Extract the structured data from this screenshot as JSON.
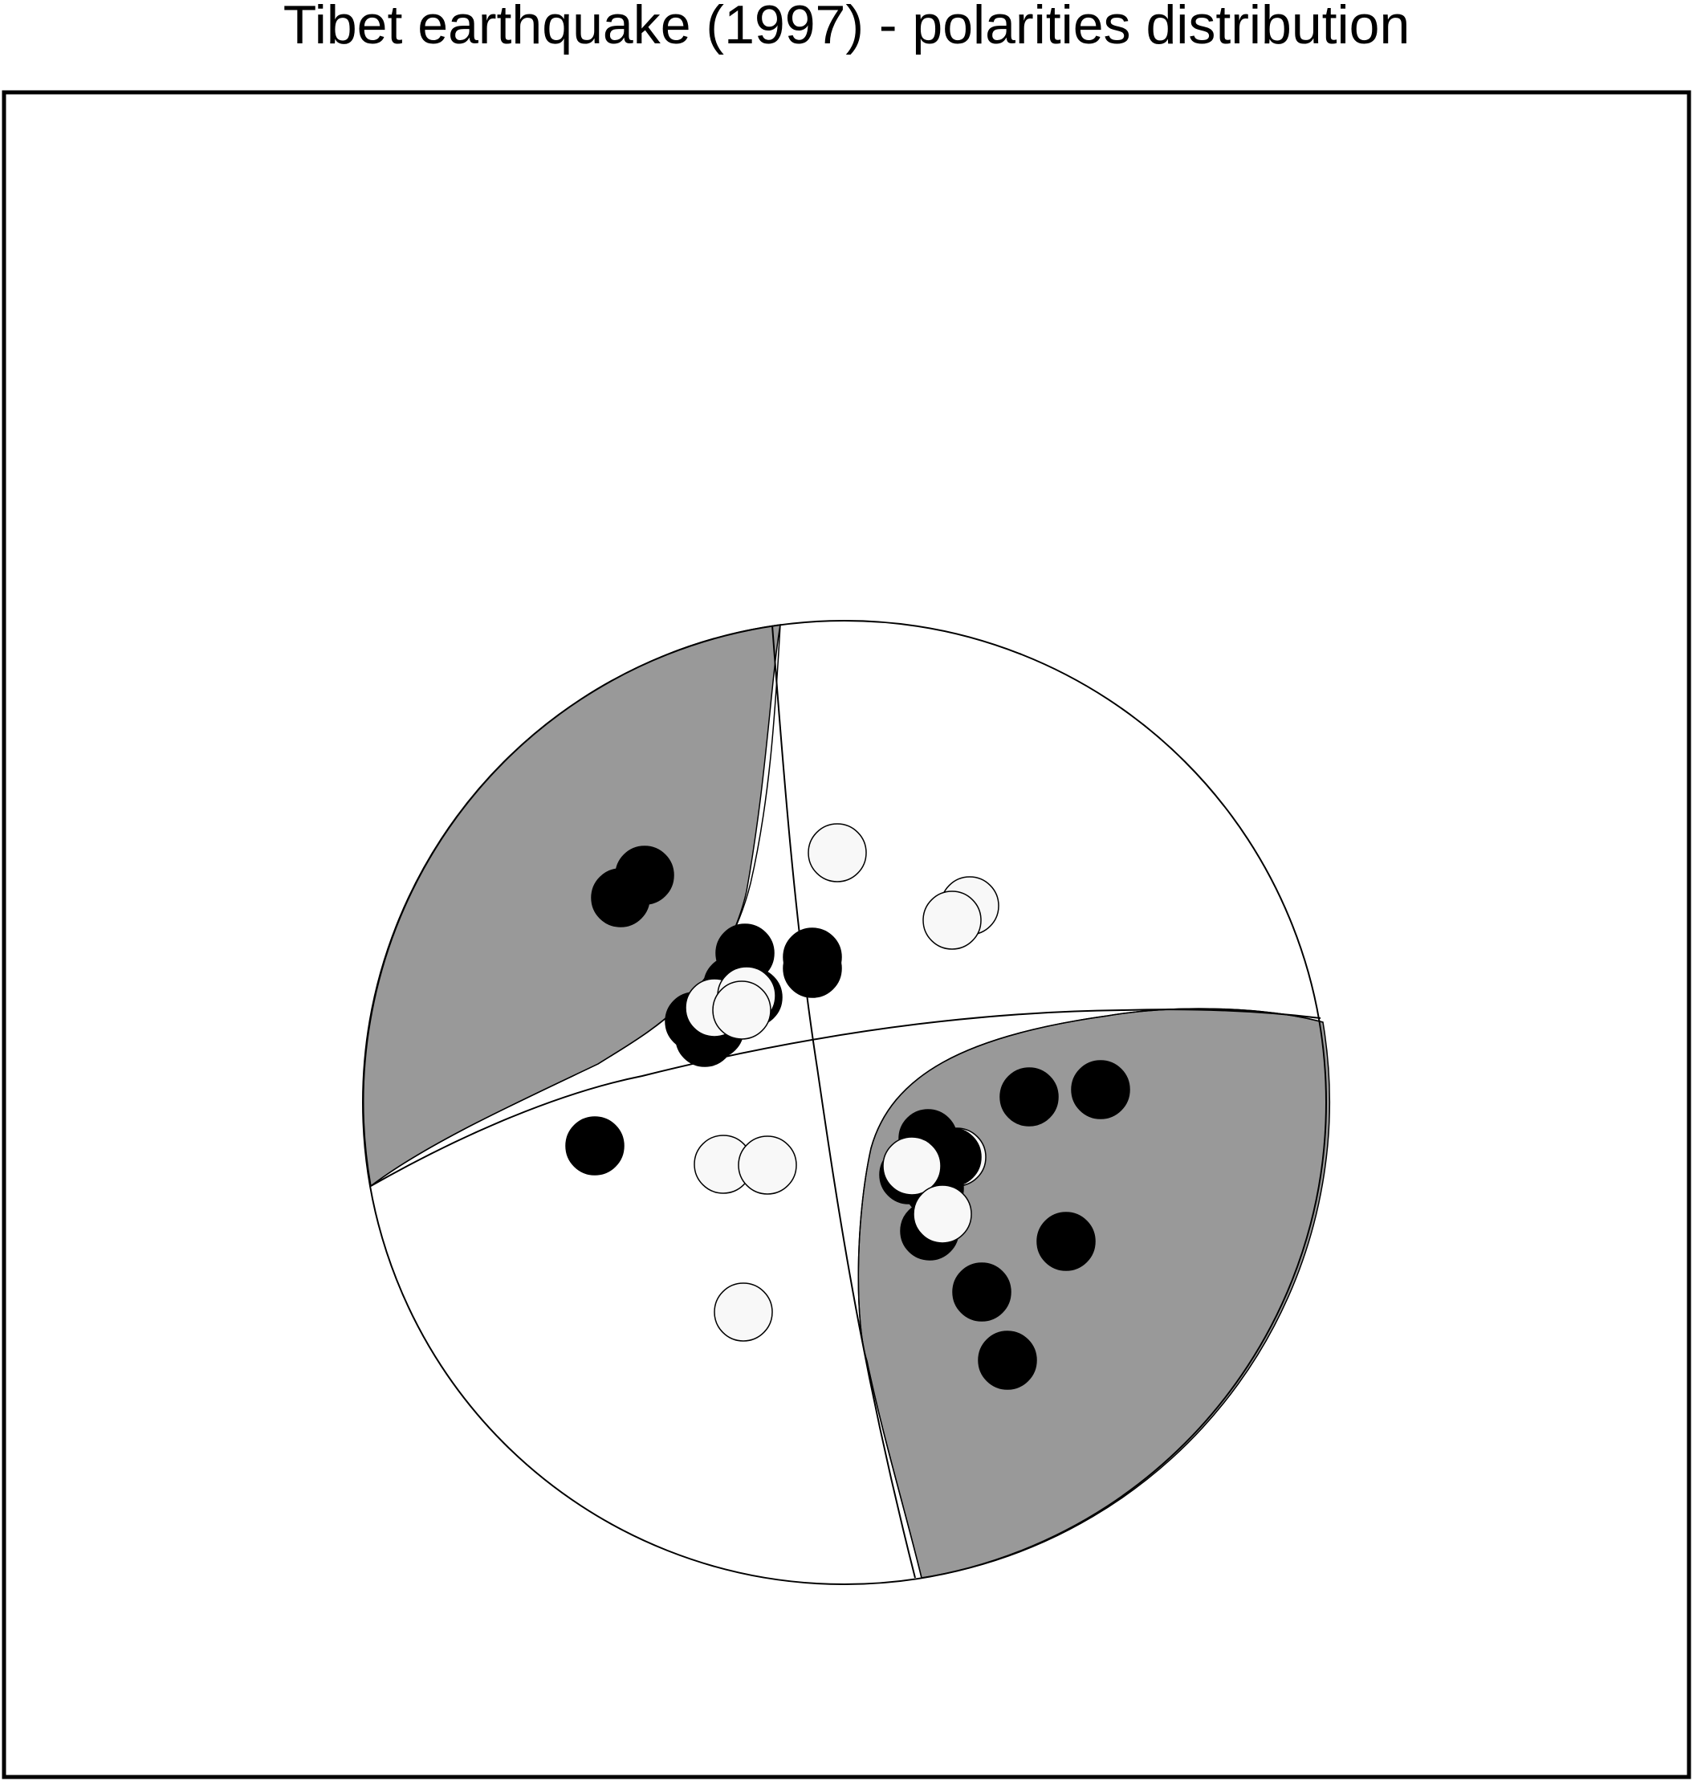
{
  "title": "Tibet earthquake (1997) - polarities distribution",
  "colors": {
    "compression_fill": "#999999",
    "dilatation_fill": "#ffffff",
    "compression_marker": "#000000",
    "dilatation_marker": "#f8f8f8",
    "outline": "#000000",
    "background": "#ffffff"
  },
  "focal_mechanism": {
    "projection": "lower-hemisphere stereographic (beach ball)",
    "quadrants": [
      "compression",
      "dilatation",
      "compression",
      "dilatation"
    ]
  },
  "polarities": {
    "compression_count": 26,
    "dilatation_count": 14
  }
}
